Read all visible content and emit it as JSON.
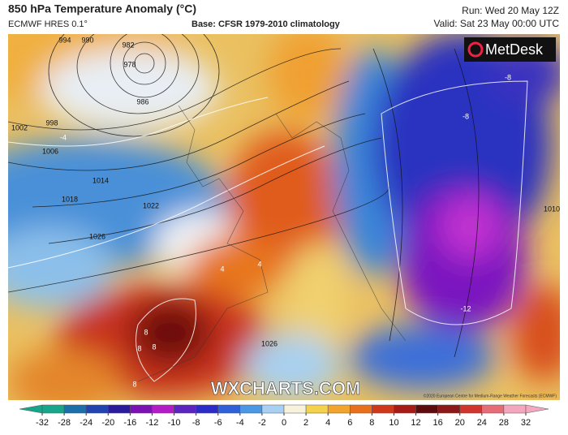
{
  "header": {
    "title": "850 hPa Temperature Anomaly (°C)",
    "model": "ECMWF HRES 0.1°",
    "base": "Base: CFSR 1979-2010 climatology",
    "run": "Run: Wed 20 May 12Z",
    "valid": "Valid: Sat 23 May 00:00 UTC"
  },
  "logo": "MetDesk",
  "watermark": "WXCHARTS.COM",
  "copyright": "©2020 European Centre for Medium-Range Weather Forecasts (ECMWF)",
  "isobar_labels": [
    994,
    990,
    982,
    978,
    986,
    1002,
    998,
    1006,
    1014,
    1018,
    1022,
    1026,
    1026,
    1010
  ],
  "contour_labels": [
    -8,
    -8,
    -12,
    4,
    4,
    8,
    8,
    8,
    8,
    -4
  ],
  "colorbar": {
    "ticks": [
      -32,
      -28,
      -24,
      -20,
      -16,
      -12,
      -10,
      -8,
      -6,
      -4,
      -2,
      0,
      2,
      4,
      6,
      8,
      10,
      12,
      16,
      20,
      24,
      28,
      32
    ],
    "colors": [
      "#17a58c",
      "#1c6fa8",
      "#2244b0",
      "#2a1c9c",
      "#7a12b4",
      "#b41cc8",
      "#5c24c0",
      "#2b2cc8",
      "#2f62d8",
      "#4c96e6",
      "#a8d0f2",
      "#f6f2dc",
      "#f4d24c",
      "#f2a42c",
      "#e8701c",
      "#d0381c",
      "#a81c18",
      "#5c0c0c",
      "#8c1818",
      "#d0342c",
      "#e66c78",
      "#f4a8c0"
    ]
  }
}
